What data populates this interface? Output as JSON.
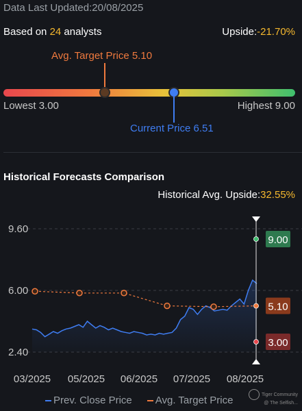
{
  "header": {
    "updated_label": "Data Last Updated:",
    "updated_value": "20/08/2025",
    "analysts_prefix": "Based on ",
    "analysts_count": "24",
    "analysts_suffix": " analysts",
    "upside_label": "Upside:",
    "upside_value": "-21.70%"
  },
  "range": {
    "avg_target_label": "Avg. Target Price 5.10",
    "lowest_label": "Lowest 3.00",
    "highest_label": "Highest 9.00",
    "current_label": "Current Price 6.51",
    "lowest": 3.0,
    "highest": 9.0,
    "avg_target": 5.1,
    "current": 6.51
  },
  "historical": {
    "title": "Historical Forecasts Comparison",
    "upside_label": "Historical Avg. Upside:",
    "upside_value": "32.55%"
  },
  "legend": {
    "prev_close": "Prev. Close Price",
    "avg_target": "Avg. Target Price"
  },
  "watermark": {
    "line1": "Tiger Community",
    "line2": "@ The Selfish..."
  },
  "colors": {
    "close_line": "#3f7df2",
    "target_line": "#f07a3e",
    "high_badge": "#2e7a4f",
    "avg_badge": "#8a3a1c",
    "low_badge": "#7a2a2a"
  },
  "chart_data": {
    "type": "line",
    "ylim": [
      2.4,
      9.6
    ],
    "y_ticks": [
      "9.60",
      "6.00",
      "2.40"
    ],
    "x_ticks": [
      "03/2025",
      "05/2025",
      "06/2025",
      "07/2025",
      "08/2025"
    ],
    "series": [
      {
        "name": "Prev. Close Price",
        "values": [
          3.75,
          3.7,
          3.55,
          3.3,
          3.45,
          3.6,
          3.5,
          3.65,
          3.75,
          3.8,
          3.9,
          4.0,
          3.85,
          4.2,
          4.0,
          3.8,
          3.95,
          3.85,
          3.7,
          3.8,
          3.7,
          3.6,
          3.55,
          3.5,
          3.6,
          3.55,
          3.5,
          3.4,
          3.45,
          3.4,
          3.5,
          3.45,
          3.5,
          3.55,
          3.8,
          4.3,
          4.5,
          5.0,
          4.9,
          4.6,
          4.9,
          5.1,
          5.0,
          4.8,
          4.85,
          4.9,
          4.85,
          5.1,
          5.3,
          5.5,
          5.2,
          6.0,
          6.6,
          6.4
        ]
      },
      {
        "name": "Avg. Target Price",
        "points": [
          {
            "x": "03/2025",
            "y": 5.95
          },
          {
            "x": "05/2025",
            "y": 5.85
          },
          {
            "x": "06/2025",
            "y": 5.85
          },
          {
            "x": "07/2025",
            "y": 5.1
          },
          {
            "x": "07/2025b",
            "y": 5.05
          },
          {
            "x": "08/2025",
            "y": 5.1
          }
        ]
      }
    ],
    "badges": [
      {
        "label": "9.00",
        "value": 9.0
      },
      {
        "label": "5.10",
        "value": 5.1
      },
      {
        "label": "3.00",
        "value": 3.0
      }
    ]
  }
}
